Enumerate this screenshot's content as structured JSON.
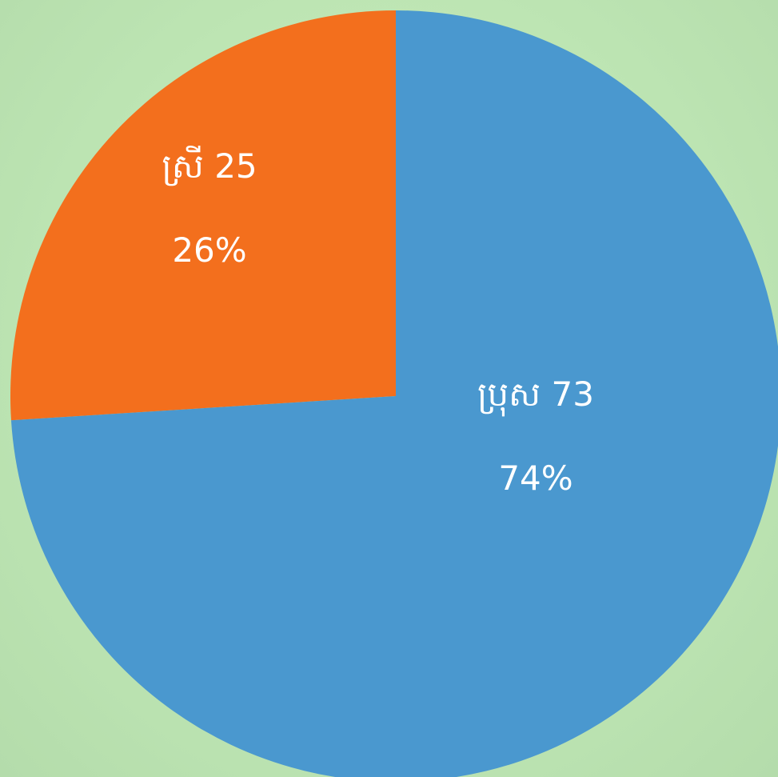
{
  "chart_data": {
    "type": "pie",
    "title": "",
    "slices": [
      {
        "label": "ស្រី",
        "count": 25,
        "percent_label": "26%",
        "percent": 26,
        "color": "#f36f1d"
      },
      {
        "label": "ប្រុស",
        "count": 73,
        "percent_label": "74%",
        "percent": 74,
        "color": "#4a98cf"
      }
    ],
    "start_angle_deg": -90,
    "direction": "counterclockwise-for-first-slice",
    "background_color": "#bfe6b4"
  }
}
